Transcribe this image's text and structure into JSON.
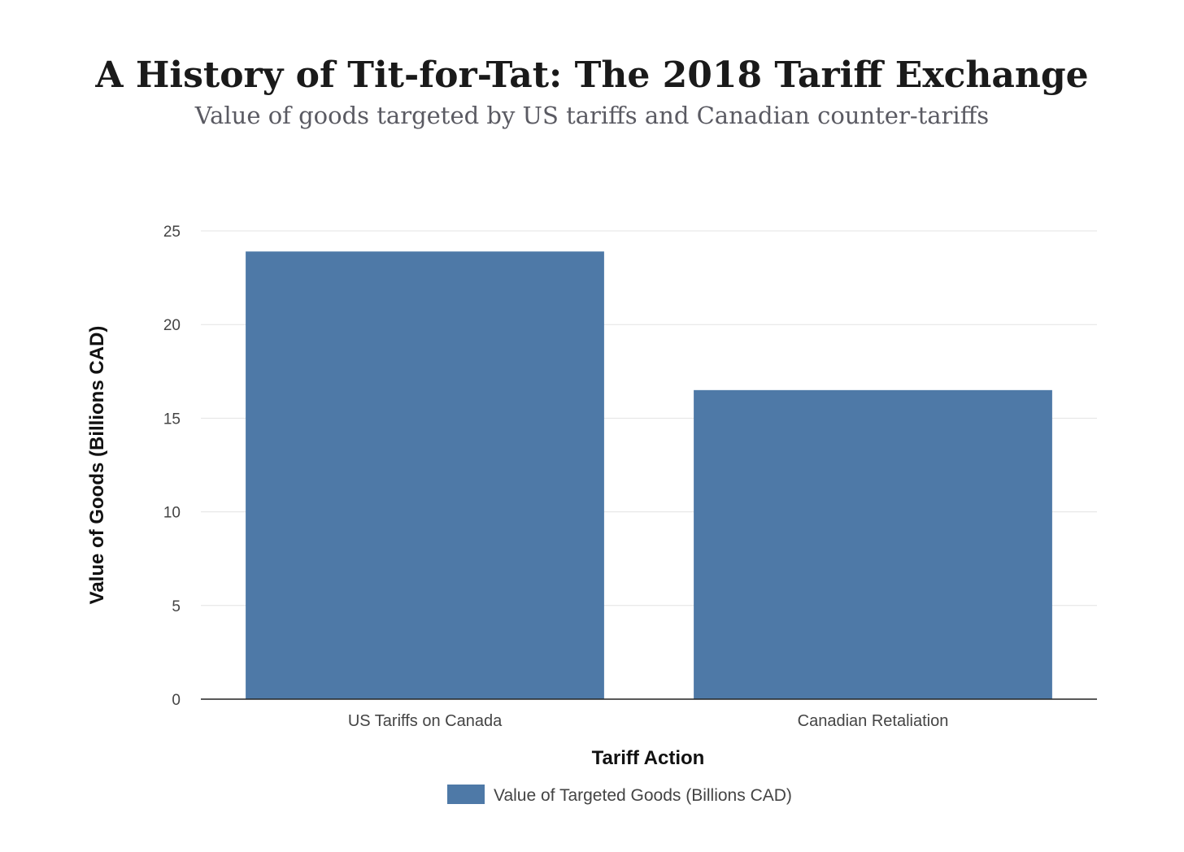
{
  "chart_data": {
    "type": "bar",
    "title": "A History of Tit-for-Tat: The 2018 Tariff Exchange",
    "subtitle": "Value of goods targeted by US tariffs and Canadian counter-tariffs",
    "xlabel": "Tariff Action",
    "ylabel": "Value of Goods (Billions CAD)",
    "categories": [
      "US Tariffs on Canada",
      "Canadian Retaliation"
    ],
    "series": [
      {
        "name": "Value of Targeted Goods (Billions CAD)",
        "values": [
          23.9,
          16.5
        ],
        "color": "#4e79a7"
      }
    ],
    "ylim": [
      0,
      25
    ],
    "yticks": [
      0,
      5,
      10,
      15,
      20,
      25
    ],
    "grid": true,
    "legend_position": "bottom-center"
  }
}
